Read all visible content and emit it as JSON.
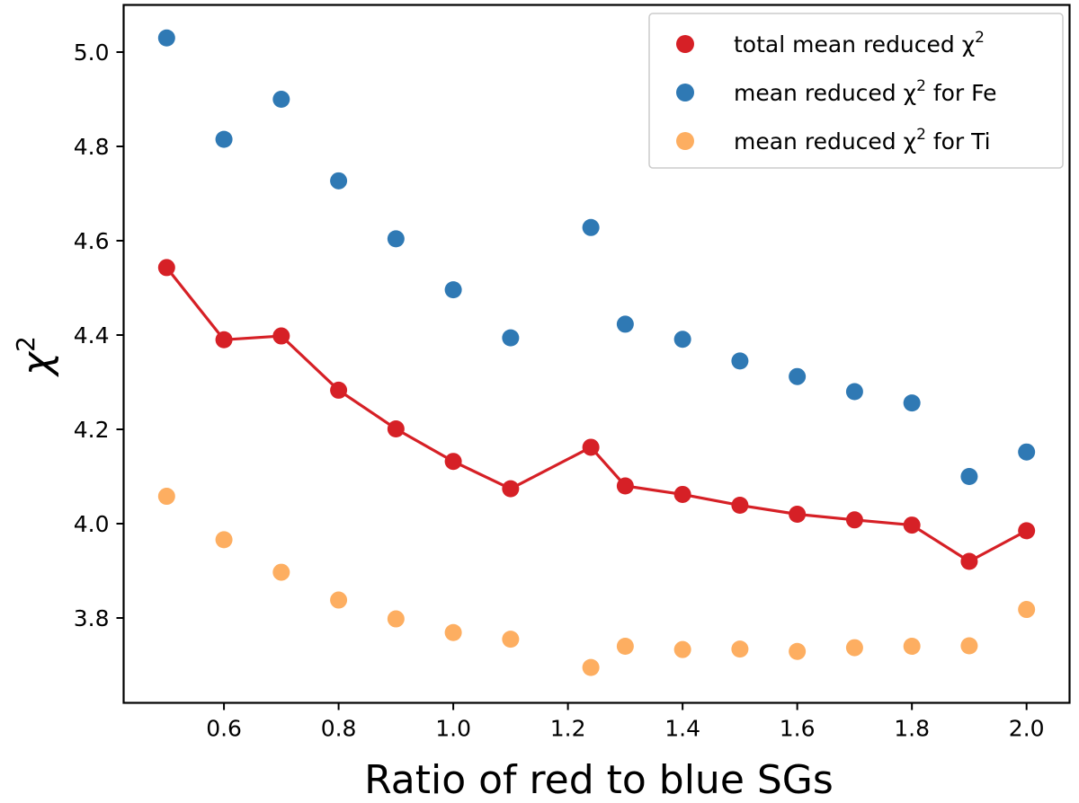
{
  "chart_data": {
    "type": "scatter",
    "title": "",
    "xlabel": "Ratio of red to blue SGs",
    "ylabel": "χ",
    "ylabel_superscript": "2",
    "xlim": [
      0.425,
      2.075
    ],
    "ylim": [
      3.62,
      5.1
    ],
    "xticks": [
      0.6,
      0.8,
      1.0,
      1.2,
      1.4,
      1.6,
      1.8,
      2.0
    ],
    "xtick_labels": [
      "0.6",
      "0.8",
      "1.0",
      "1.2",
      "1.4",
      "1.6",
      "1.8",
      "2.0"
    ],
    "yticks": [
      3.8,
      4.0,
      4.2,
      4.4,
      4.6,
      4.8,
      5.0
    ],
    "ytick_labels": [
      "3.8",
      "4.0",
      "4.2",
      "4.4",
      "4.6",
      "4.8",
      "5.0"
    ],
    "grid": false,
    "legend_position": "top-right",
    "series": [
      {
        "name": "total mean reduced χ² (line + markers)",
        "legend_label": "total mean reduced χ",
        "legend_sup": "2",
        "legend_suffix": "",
        "color": "#d62026",
        "line": true,
        "x": [
          0.5,
          0.6,
          0.7,
          0.8,
          0.9,
          1.0,
          1.1,
          1.24,
          1.3,
          1.4,
          1.5,
          1.6,
          1.7,
          1.8,
          1.9,
          2.0
        ],
        "y": [
          4.543,
          4.39,
          4.398,
          4.283,
          4.201,
          4.132,
          4.074,
          4.162,
          4.08,
          4.062,
          4.039,
          4.02,
          4.008,
          3.997,
          3.92,
          3.985
        ]
      },
      {
        "name": "mean reduced χ² for Fe",
        "legend_label": "mean reduced χ",
        "legend_sup": "2",
        "legend_suffix": " for Fe",
        "color": "#2f79b4",
        "line": false,
        "x": [
          0.5,
          0.6,
          0.7,
          0.8,
          0.9,
          1.0,
          1.1,
          1.24,
          1.3,
          1.4,
          1.5,
          1.6,
          1.7,
          1.8,
          1.9,
          2.0
        ],
        "y": [
          5.03,
          4.815,
          4.9,
          4.727,
          4.604,
          4.496,
          4.394,
          4.628,
          4.423,
          4.391,
          4.345,
          4.312,
          4.28,
          4.256,
          4.1,
          4.152
        ]
      },
      {
        "name": "mean reduced χ² for Ti",
        "legend_label": "mean reduced χ",
        "legend_sup": "2",
        "legend_suffix": " for Ti",
        "color": "#fdae61",
        "line": false,
        "x": [
          0.5,
          0.6,
          0.7,
          0.8,
          0.9,
          1.0,
          1.1,
          1.24,
          1.3,
          1.4,
          1.5,
          1.6,
          1.7,
          1.8,
          1.9,
          2.0
        ],
        "y": [
          4.058,
          3.966,
          3.897,
          3.838,
          3.798,
          3.769,
          3.755,
          3.695,
          3.74,
          3.733,
          3.734,
          3.729,
          3.737,
          3.74,
          3.741,
          3.818
        ]
      }
    ]
  }
}
